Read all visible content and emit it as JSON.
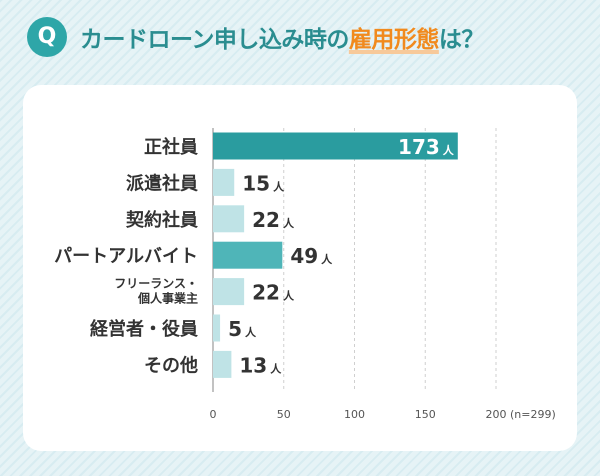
{
  "header": {
    "badge": "Q",
    "title_prefix": "カードローン申し込み時の",
    "title_highlight": "雇用形態",
    "title_suffix": "は？"
  },
  "colors": {
    "bar_strong": "#2a9c9f",
    "bar_mid": "#4fb5b8",
    "bar_light": "#bfe3e6",
    "accent": "#f18a1d"
  },
  "chart_data": {
    "type": "bar",
    "orientation": "horizontal",
    "categories": [
      "正社員",
      "派遣社員",
      "契約社員",
      "パートアルバイト",
      "フリーランス・\n個人事業主",
      "経営者・役員",
      "その他"
    ],
    "values": [
      173,
      15,
      22,
      49,
      22,
      5,
      13
    ],
    "unit": "人",
    "xlim": [
      0,
      200
    ],
    "xticks": [
      0,
      50,
      100,
      150,
      200
    ],
    "note": "(n=299)",
    "grid": true
  }
}
